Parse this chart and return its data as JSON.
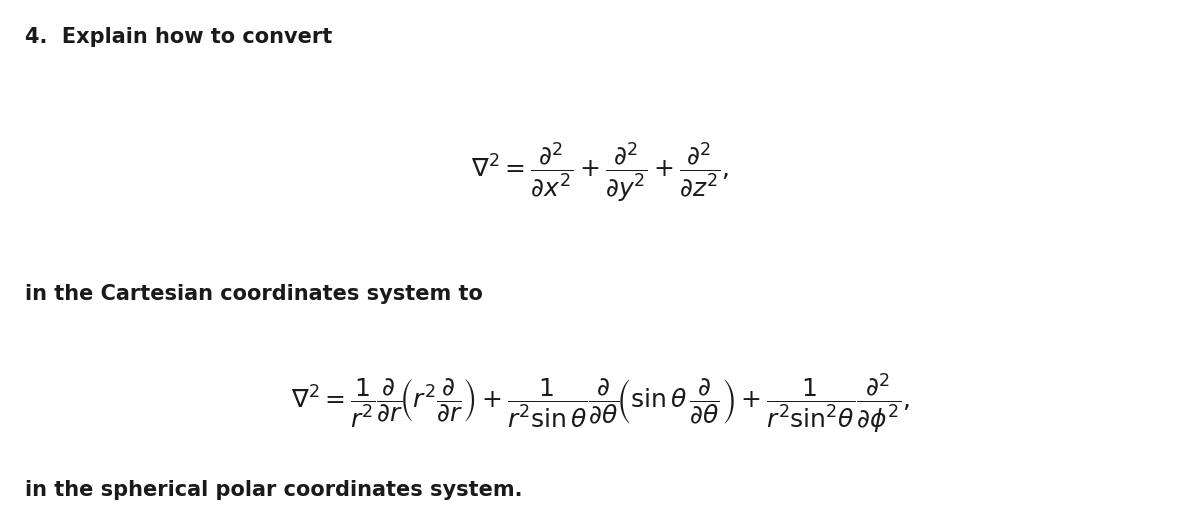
{
  "background_color": "#ffffff",
  "fig_width": 12.0,
  "fig_height": 5.17,
  "dpi": 100,
  "text_color": "#1a1a1a",
  "line1": "4.  Explain how to convert",
  "line2": "in the Cartesian coordinates system to",
  "line3": "in the spherical polar coordinates system.",
  "cartesian_eq": "$\\nabla^2=\\dfrac{\\partial^2}{\\partial x^2}+\\dfrac{\\partial^2}{\\partial y^2}+\\dfrac{\\partial^2}{\\partial z^2},$",
  "spherical_eq": "$\\nabla^2=\\dfrac{1}{r^2}\\dfrac{\\partial}{\\partial r}\\!\\left(r^2\\dfrac{\\partial}{\\partial r}\\right)+\\dfrac{1}{r^2\\sin\\theta}\\dfrac{\\partial}{\\partial\\theta}\\!\\left(\\sin\\theta\\,\\dfrac{\\partial}{\\partial\\theta}\\right)+\\dfrac{1}{r^2\\sin^2\\!\\theta}\\dfrac{\\partial^2}{\\partial\\phi^2},$",
  "font_size_text": 15,
  "font_size_eq": 16,
  "font_size_header": 15
}
